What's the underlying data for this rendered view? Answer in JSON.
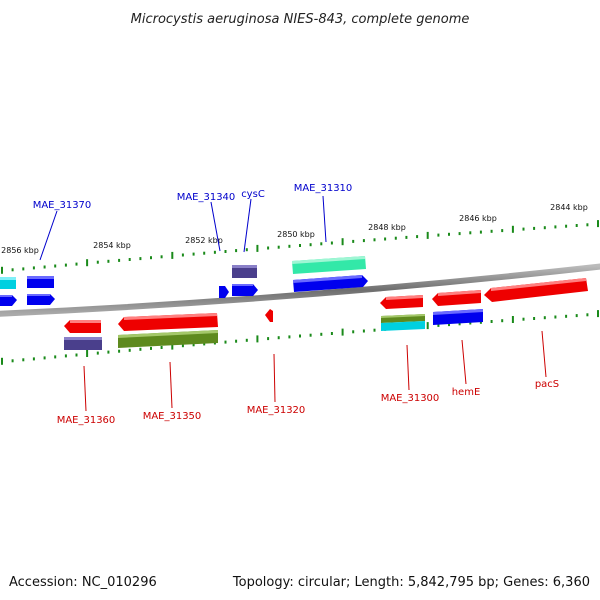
{
  "title": "Microcystis aeruginosa NIES-843, complete genome",
  "footer": {
    "accession": "Accession: NC_010296",
    "summary": "Topology: circular; Length: 5,842,795 bp; Genes: 6,360"
  },
  "ticks": [
    "2856 kbp",
    "2854 kbp",
    "2852 kbp",
    "2850 kbp",
    "2848 kbp",
    "2846 kbp",
    "2844 kbp"
  ],
  "gene_labels_forward": [
    "MAE_31370",
    "MAE_31340",
    "cysC",
    "MAE_31310"
  ],
  "gene_labels_reverse": [
    "MAE_31360",
    "MAE_31350",
    "MAE_31320",
    "MAE_31300",
    "hemE",
    "pacS"
  ],
  "colors": {
    "forward_gene": "#0000ee",
    "reverse_gene": "#ee0000",
    "cog_purple": "#4a3f8c",
    "cog_cyan": "#00d0e0",
    "cog_teal": "#33e8a8",
    "cog_olive": "#5e8a1e",
    "backbone": "#808080",
    "tick": "#1a8a1a"
  }
}
